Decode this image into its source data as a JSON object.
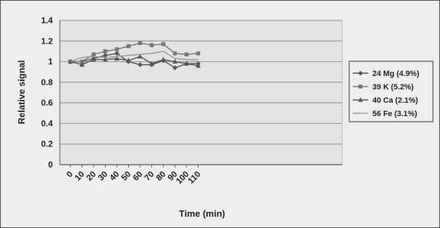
{
  "chart_data": {
    "type": "line",
    "title": "",
    "xlabel": "Time (min)",
    "ylabel": "Relative signal",
    "x": [
      0,
      10,
      20,
      30,
      40,
      50,
      60,
      70,
      80,
      90,
      100,
      110
    ],
    "ylim": [
      0,
      1.4
    ],
    "yticks": [
      "0",
      "0.2",
      "0.4",
      "0.6",
      "0.8",
      "1",
      "1.2",
      "1.4"
    ],
    "grid": "horizontal",
    "legend_position": "right",
    "series": [
      {
        "name": "24 Mg (4.9%)",
        "marker": "diamond",
        "color": "#555555",
        "values": [
          1.0,
          1.0,
          1.03,
          1.06,
          1.08,
          1.0,
          0.97,
          0.97,
          1.01,
          0.94,
          0.98,
          0.98
        ]
      },
      {
        "name": "39 K (5.2%)",
        "marker": "square",
        "color": "#777777",
        "values": [
          1.0,
          1.0,
          1.07,
          1.1,
          1.12,
          1.15,
          1.18,
          1.16,
          1.17,
          1.08,
          1.07,
          1.08
        ]
      },
      {
        "name": "40 Ca (2.1%)",
        "marker": "triangle",
        "color": "#555555",
        "values": [
          1.0,
          0.97,
          1.02,
          1.02,
          1.03,
          1.01,
          1.05,
          0.98,
          1.02,
          1.0,
          0.98,
          0.96
        ]
      },
      {
        "name": "56 Fe (3.1%)",
        "marker": "none",
        "color": "#999999",
        "values": [
          1.0,
          1.04,
          1.05,
          1.04,
          1.05,
          1.06,
          1.07,
          1.08,
          1.1,
          1.03,
          1.02,
          1.02
        ]
      }
    ]
  }
}
